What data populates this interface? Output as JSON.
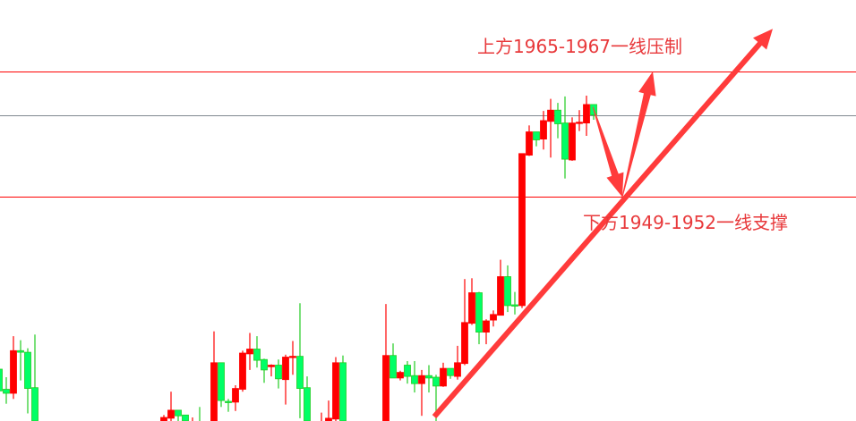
{
  "chart_data": {
    "type": "candlestick",
    "title": "",
    "grid": false,
    "colors": {
      "up": "#ff0000",
      "down": "#00ff66",
      "down_border": "#22cc22",
      "resistance_line": "#ff0000",
      "mid_line": "#808890",
      "arrow": "#ff3b3b",
      "annotation_text": "#e8393b"
    },
    "candle_fields": [
      "index",
      "open",
      "high",
      "low",
      "close"
    ],
    "candles": [
      [
        0,
        1929.0,
        1929.0,
        1926.3,
        1926.3
      ],
      [
        1,
        1926.5,
        1928.0,
        1924.7,
        1926.0
      ],
      [
        2,
        1926.0,
        1933.1,
        1925.3,
        1931.3
      ],
      [
        3,
        1931.3,
        1932.6,
        1927.6,
        1931.1
      ],
      [
        4,
        1931.1,
        1931.6,
        1923.5,
        1926.6
      ],
      [
        5,
        1926.7,
        1933.3,
        1921,
        1921
      ],
      [
        23,
        1921,
        1923.3,
        1921,
        1923.0
      ],
      [
        24,
        1922.9,
        1926.2,
        1921,
        1923.9
      ],
      [
        25,
        1923.9,
        1923.9,
        1921,
        1923.2
      ],
      [
        26,
        1923.3,
        1923.3,
        1921,
        1921
      ],
      [
        27,
        1920,
        1923.0,
        1919,
        1920.5
      ],
      [
        28,
        1921,
        1924.3,
        1919,
        1920
      ],
      [
        30,
        1921,
        1933.7,
        1921,
        1929.8
      ],
      [
        31,
        1929.8,
        1929.8,
        1924.3,
        1925.1
      ],
      [
        32,
        1925.0,
        1925.3,
        1923.7,
        1924.9
      ],
      [
        33,
        1924.9,
        1927.0,
        1923.8,
        1926.6
      ],
      [
        34,
        1926.5,
        1931.3,
        1926.2,
        1931.0
      ],
      [
        35,
        1930.9,
        1933.5,
        1928.9,
        1931.5
      ],
      [
        36,
        1931.5,
        1933.1,
        1929.2,
        1930.1
      ],
      [
        37,
        1930.2,
        1930.3,
        1927.3,
        1928.9
      ],
      [
        38,
        1929.3,
        1929.6,
        1928.1,
        1929.5
      ],
      [
        39,
        1929.5,
        1930.2,
        1926.6,
        1927.8
      ],
      [
        40,
        1927.7,
        1930.8,
        1924.6,
        1930.5
      ],
      [
        41,
        1930.5,
        1932.5,
        1928.3,
        1930.6
      ],
      [
        42,
        1930.6,
        1937.2,
        1922.9,
        1926.6
      ],
      [
        43,
        1926.7,
        1928.1,
        1921,
        1921
      ],
      [
        45,
        1920,
        1923.6,
        1919,
        1920.5
      ],
      [
        46,
        1921,
        1925.1,
        1921,
        1922.9
      ],
      [
        47,
        1922.8,
        1930.5,
        1921,
        1929.8
      ],
      [
        48,
        1929.8,
        1930.7,
        1921,
        1921
      ],
      [
        54,
        1921,
        1937.1,
        1921,
        1930.7
      ],
      [
        55,
        1930.7,
        1932.2,
        1927.9,
        1927.9
      ],
      [
        56,
        1927.9,
        1928.8,
        1927.6,
        1928.6
      ],
      [
        57,
        1929.5,
        1930.0,
        1927.2,
        1928.1
      ],
      [
        58,
        1928.2,
        1930.0,
        1926.1,
        1927.2
      ],
      [
        59,
        1927.2,
        1928.9,
        1923.2,
        1928.2
      ],
      [
        60,
        1928.2,
        1929.5,
        1926.1,
        1927.9
      ],
      [
        61,
        1928.0,
        1928.3,
        1921,
        1926.9
      ],
      [
        62,
        1926.9,
        1929.8,
        1926.8,
        1929.1
      ],
      [
        63,
        1929.1,
        1929.1,
        1927.8,
        1928.2
      ],
      [
        64,
        1928.1,
        1931.9,
        1927.7,
        1929.8
      ],
      [
        65,
        1929.7,
        1940.2,
        1929.5,
        1934.8
      ],
      [
        66,
        1934.7,
        1940.3,
        1934.5,
        1938.5
      ],
      [
        67,
        1938.5,
        1938.6,
        1932.1,
        1933.6
      ],
      [
        68,
        1933.6,
        1935.2,
        1932.1,
        1935.0
      ],
      [
        69,
        1935.1,
        1936.3,
        1934.3,
        1935.8
      ],
      [
        70,
        1935.7,
        1942.6,
        1935.7,
        1940.5
      ],
      [
        71,
        1940.5,
        1941.9,
        1936.1,
        1936.9
      ],
      [
        72,
        1937.0,
        1938.6,
        1935.8,
        1936.9
      ],
      [
        73,
        1936.9,
        1955.8,
        1936.6,
        1955.8
      ],
      [
        74,
        1955.6,
        1959.3,
        1955.5,
        1958.5
      ],
      [
        75,
        1958.5,
        1958.5,
        1956.7,
        1957.5
      ],
      [
        76,
        1957.6,
        1961.1,
        1956.3,
        1959.9
      ],
      [
        77,
        1959.8,
        1962.6,
        1955.3,
        1961.2
      ],
      [
        78,
        1961.2,
        1962.1,
        1957.7,
        1959.5
      ],
      [
        79,
        1959.6,
        1962.9,
        1952.7,
        1955.1
      ],
      [
        80,
        1955.0,
        1960.3,
        1954.9,
        1959.6
      ],
      [
        81,
        1959.6,
        1961.2,
        1958.6,
        1959.7
      ],
      [
        82,
        1959.6,
        1963.0,
        1958.0,
        1961.9
      ],
      [
        83,
        1961.9,
        1961.9,
        1960.0,
        1960.6
      ]
    ],
    "horizontal_lines": [
      {
        "price": 1966,
        "color": "#ff0000"
      },
      {
        "price": 1960.6,
        "color": "#808890"
      },
      {
        "price": 1950.5,
        "color": "#ff0000"
      }
    ],
    "arrows": [
      {
        "from": [
          60.75,
          1923.1
        ],
        "to": [
          108,
          1971.3
        ],
        "style": "thick"
      },
      {
        "from": [
          82.9,
          1961.6
        ],
        "to": [
          87,
          1950.4
        ],
        "style": "tapered"
      },
      {
        "from": [
          87,
          1950.4
        ],
        "to": [
          91.25,
          1966
        ],
        "style": "tapered"
      }
    ],
    "annotations": {
      "resistance": "上方1965-1967一线压制",
      "support": "下方1949-1952一线支撑"
    }
  }
}
